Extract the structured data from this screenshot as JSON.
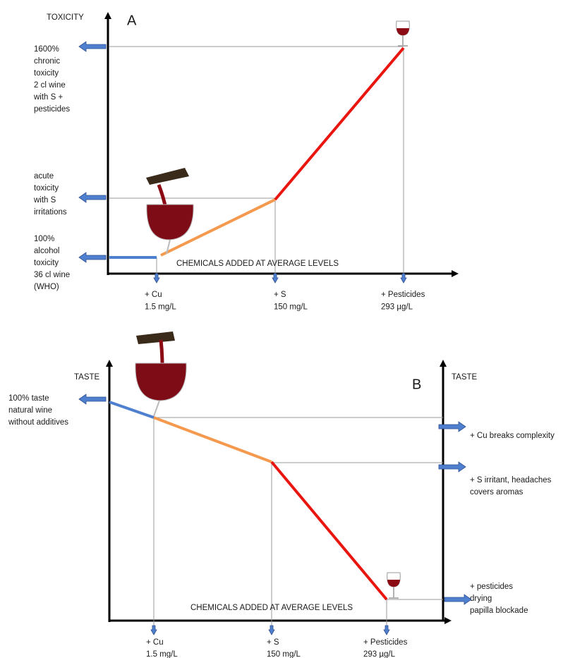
{
  "panel_a": {
    "letter": "A",
    "y_label": "TOXICITY",
    "x_label": "CHEMICALS ADDED AT AVERAGE LEVELS",
    "left_notes": [
      [
        "1600%",
        "chronic",
        "toxicity",
        "2 cl wine",
        "with S +",
        "pesticides"
      ],
      [
        "acute",
        "toxicity",
        "with S",
        "irritations"
      ],
      [
        "100%",
        "alcohol",
        "toxicity",
        "36 cl wine",
        "(WHO)"
      ]
    ],
    "x_items": [
      [
        "+ Cu",
        "1.5 mg/L"
      ],
      [
        "+ S",
        "150 mg/L"
      ],
      [
        "+ Pesticides",
        "293 µg/L"
      ]
    ]
  },
  "panel_b": {
    "letter": "B",
    "y_label": "TASTE",
    "y2_label": "TASTE",
    "x_label": "CHEMICALS ADDED AT AVERAGE LEVELS",
    "left_notes": [
      [
        "100% taste",
        "natural wine",
        "without additives"
      ]
    ],
    "right_notes": [
      [
        "+ Cu breaks complexity"
      ],
      [
        "+ S irritant, headaches",
        "covers aromas"
      ],
      [
        "+ pesticides",
        "drying",
        "papilla blockade"
      ]
    ],
    "x_items": [
      [
        "+ Cu",
        "1.5 mg/L"
      ],
      [
        "+ S",
        "150 mg/L"
      ],
      [
        "+ Pesticides",
        "293 µg/L"
      ]
    ]
  }
}
